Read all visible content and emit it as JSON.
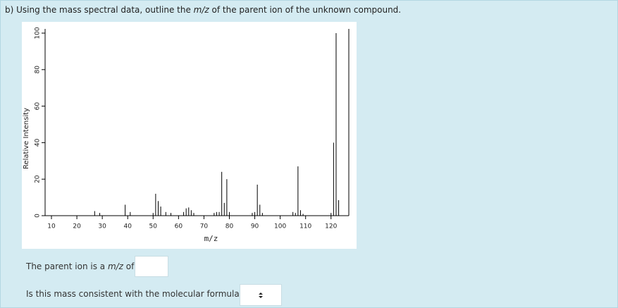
{
  "question": {
    "parts": [
      "b) Using the mass spectral data, outline the ",
      "m/z",
      " of the parent ion of the unknown compound."
    ]
  },
  "chart_data": {
    "type": "bar",
    "x_label": "m/z",
    "y_label": "Relative Intensity",
    "color": "#000000",
    "x": [
      27,
      29,
      39,
      41,
      50,
      51,
      52,
      53,
      55,
      57,
      62,
      63,
      64,
      65,
      66,
      74,
      75,
      76,
      77,
      78,
      79,
      80,
      89,
      90,
      91,
      92,
      93,
      105,
      106,
      107,
      108,
      109,
      120,
      121,
      122,
      123
    ],
    "values": [
      2.5,
      1.5,
      6,
      2,
      1.5,
      12,
      8,
      5,
      2,
      1.5,
      2,
      4,
      4.5,
      3,
      1.5,
      1.5,
      2,
      2,
      24,
      7,
      20,
      2,
      1.5,
      2,
      17,
      6,
      1.5,
      2,
      1.5,
      27,
      3,
      1,
      1.5,
      40,
      100,
      8.5
    ],
    "xlim": [
      7.5,
      127
    ],
    "xticks": [
      10,
      20,
      30,
      40,
      50,
      60,
      70,
      80,
      90,
      100,
      110,
      120
    ],
    "ylim": [
      0,
      100
    ],
    "yticks": [
      0,
      20,
      40,
      60,
      80,
      100
    ]
  },
  "answer": {
    "parent_ion_parts": [
      "The parent ion is a ",
      "m/z",
      " of"
    ],
    "consistency_question": "Is this mass consistent with the molecular formula?"
  }
}
